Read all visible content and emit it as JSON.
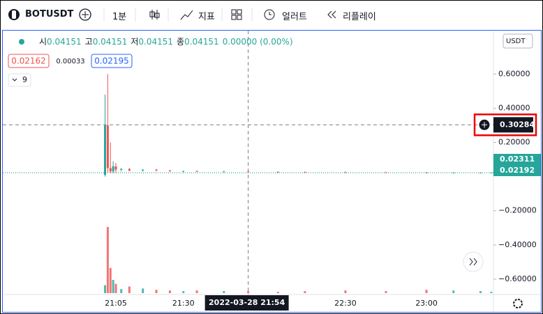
{
  "toolbar": {
    "symbol": "BOTUSDT",
    "interval": "1분",
    "indicators": "지표",
    "alert": "얼러트",
    "replay": "리플레이"
  },
  "legend": {
    "open_label": "시",
    "open": "0.04151",
    "high_label": "고",
    "high": "0.04151",
    "low_label": "저",
    "low": "0.04151",
    "close_label": "종",
    "close": "0.04151",
    "change": "0.00000 (0.00%)",
    "bid": 0.02162,
    "spread": 0.00033,
    "ask": 0.02195,
    "indicator_count": "9"
  },
  "currency": "USDT",
  "chart_data": {
    "type": "candlestick",
    "x": [
      "21:01",
      "21:02",
      "21:03",
      "21:04",
      "21:05",
      "21:07",
      "21:10",
      "21:15",
      "21:20",
      "21:25",
      "21:30",
      "21:35",
      "21:45",
      "21:54",
      "22:05",
      "22:15",
      "22:30",
      "22:45",
      "23:00",
      "23:10",
      "23:20",
      "23:24"
    ],
    "open": [
      0.01,
      0.3,
      0.05,
      0.03,
      0.06,
      0.04,
      0.045,
      0.035,
      0.04,
      0.035,
      0.03,
      0.032,
      0.03,
      0.03,
      0.028,
      0.027,
      0.026,
      0.025,
      0.024,
      0.023,
      0.023,
      0.023
    ],
    "high": [
      0.48,
      0.6,
      0.2,
      0.09,
      0.08,
      0.05,
      0.05,
      0.045,
      0.045,
      0.04,
      0.035,
      0.036,
      0.034,
      0.033,
      0.031,
      0.03,
      0.029,
      0.028,
      0.027,
      0.026,
      0.025,
      0.024
    ],
    "low": [
      0.0,
      0.02,
      0.02,
      0.02,
      0.02,
      0.03,
      0.03,
      0.03,
      0.03,
      0.03,
      0.025,
      0.027,
      0.026,
      0.025,
      0.024,
      0.023,
      0.022,
      0.021,
      0.021,
      0.021,
      0.021,
      0.022
    ],
    "close": [
      0.3,
      0.05,
      0.03,
      0.06,
      0.04,
      0.045,
      0.035,
      0.04,
      0.035,
      0.03,
      0.032,
      0.03,
      0.03,
      0.028,
      0.027,
      0.026,
      0.025,
      0.024,
      0.023,
      0.023,
      0.023,
      0.023
    ],
    "volume": [
      12,
      100,
      38,
      20,
      14,
      6,
      10,
      7,
      5,
      4,
      3,
      4,
      3,
      3,
      2,
      3,
      4,
      3,
      5,
      4,
      3,
      2
    ],
    "up_color": "#26a69a",
    "down_color": "#ef5350",
    "ylim": [
      -0.69,
      0.85
    ],
    "yticks": [
      {
        "value": 0.6,
        "label": "0.60000"
      },
      {
        "value": 0.4,
        "label": "0.40000"
      },
      {
        "value": 0.2,
        "label": "0.20000"
      },
      {
        "value": -0.2,
        "label": "−0.20000"
      },
      {
        "value": -0.4,
        "label": "−0.40000"
      },
      {
        "value": -0.6,
        "label": "−0.60000"
      }
    ],
    "xticks": [
      "21:05",
      "21:30",
      "22:30",
      "23:00"
    ],
    "crosshair": {
      "price": 0.30284,
      "time": "21:54",
      "time_label": "2022-03-28   21:54"
    },
    "last_prices": [
      0.02311,
      0.02192
    ]
  }
}
